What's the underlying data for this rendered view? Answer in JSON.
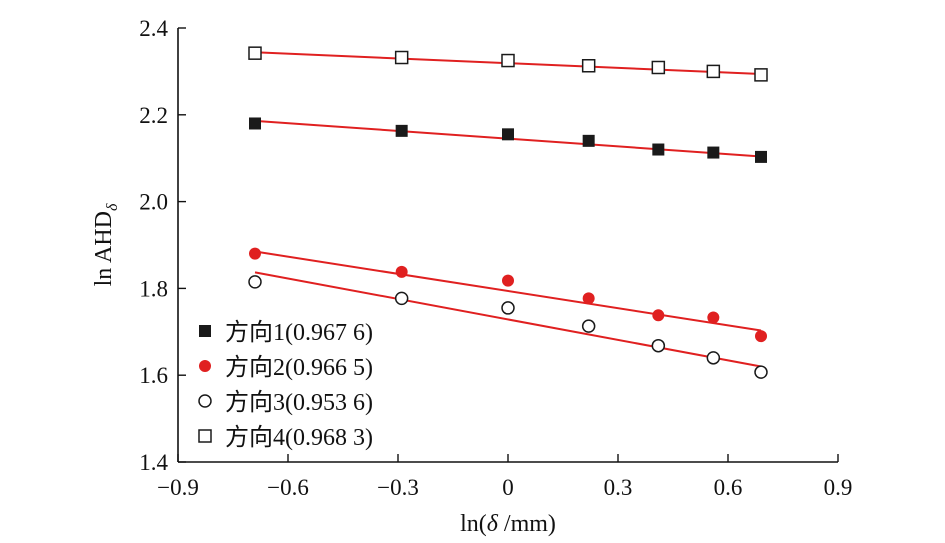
{
  "chart_data": {
    "type": "scatter",
    "xlabel": "ln(δ /mm)",
    "ylabel": "ln AHDδ",
    "ylabel_main": "ln AHD",
    "ylabel_sub": "δ",
    "xlim": [
      -0.9,
      0.9
    ],
    "ylim": [
      1.4,
      2.4
    ],
    "x_ticks": [
      "−0.9",
      "−0.6",
      "−0.3",
      "0",
      "0.3",
      "0.6",
      "0.9"
    ],
    "y_ticks": [
      "1.4",
      "1.6",
      "1.8",
      "2.0",
      "2.2",
      "2.4"
    ],
    "x": [
      -0.69,
      -0.29,
      0.0,
      0.22,
      0.41,
      0.56,
      0.69
    ],
    "fit_line_color": "#e02020",
    "series": [
      {
        "name": "方向1(0.967 6)",
        "marker": "filled-square",
        "color": "#1a1a1a",
        "values": [
          2.18,
          2.163,
          2.155,
          2.14,
          2.12,
          2.113,
          2.103
        ],
        "fit": [
          [
            -0.69,
            2.186
          ],
          [
            0.69,
            2.104
          ]
        ]
      },
      {
        "name": "方向2(0.966 5)",
        "marker": "filled-circle",
        "color": "#e02020",
        "values": [
          1.88,
          1.838,
          1.818,
          1.777,
          1.738,
          1.733,
          1.69
        ],
        "fit": [
          [
            -0.69,
            1.885
          ],
          [
            0.69,
            1.703
          ]
        ]
      },
      {
        "name": "方向3(0.953 6)",
        "marker": "open-circle",
        "color": "#1a1a1a",
        "values": [
          1.815,
          1.777,
          1.755,
          1.713,
          1.668,
          1.64,
          1.607
        ],
        "fit": [
          [
            -0.69,
            1.837
          ],
          [
            0.69,
            1.62
          ]
        ]
      },
      {
        "name": "方向4(0.968 3)",
        "marker": "open-square",
        "color": "#1a1a1a",
        "values": [
          2.342,
          2.332,
          2.325,
          2.313,
          2.309,
          2.3,
          2.292
        ],
        "fit": [
          [
            -0.69,
            2.344
          ],
          [
            0.69,
            2.294
          ]
        ]
      }
    ],
    "legend_position": "lower-left"
  }
}
